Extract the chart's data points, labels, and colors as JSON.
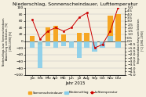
{
  "title": "Niederschlag, Sonnenscheindauer, Lufttemperatur",
  "xlabel": "Jahr 2015",
  "ylabel_left": "Niederschlags- bzw. Sonnenscheindauer-\nAbweichung vom Gebietsm. [%]\n[1961-1990] [%]",
  "ylabel_right": "Temperaturabweichung vom Gebietsm.\n[°C] [1961-1990]",
  "months": [
    "Jan",
    "Feb",
    "Mrz",
    "Apr",
    "Mai",
    "Jun",
    "Jul",
    "Aug",
    "Sep",
    "Okt",
    "Nov",
    "Dez"
  ],
  "sonnenschein": [
    15,
    -10,
    40,
    45,
    20,
    0,
    25,
    25,
    -5,
    -5,
    75,
    80
  ],
  "niederschlag": [
    -20,
    -80,
    -15,
    -20,
    -15,
    -20,
    -50,
    -20,
    -30,
    -20,
    15,
    -20
  ],
  "temperatur": [
    3.2,
    0.3,
    1.5,
    2.0,
    1.5,
    2.0,
    3.5,
    4.2,
    -1.0,
    -0.5,
    1.5,
    5.0
  ],
  "ylim_left": [
    -100,
    100
  ],
  "ylim_right": [
    -5.0,
    5.0
  ],
  "yticks_left": [
    -100,
    -80,
    -60,
    -40,
    -20,
    0,
    20,
    40,
    60,
    80,
    100
  ],
  "yticks_right": [
    -5.0,
    -4.5,
    -4.0,
    -3.5,
    -3.0,
    -2.5,
    -2.0,
    -1.5,
    -1.0,
    -0.5,
    0.0,
    0.5,
    1.0,
    1.5,
    2.0,
    2.5,
    3.0,
    3.5,
    4.0,
    4.5,
    5.0
  ],
  "sonnenschein_color": "#F5A623",
  "niederschlag_color": "#87CEEB",
  "temperatur_color": "#CC0000",
  "background_color": "#F5F0E0",
  "plot_bg_color": "#F5F0E0",
  "grid_color": "#BBBBBB",
  "legend_labels": [
    "Sonnenscheindauer",
    "Niederschlag",
    "Lufttemperatur"
  ]
}
